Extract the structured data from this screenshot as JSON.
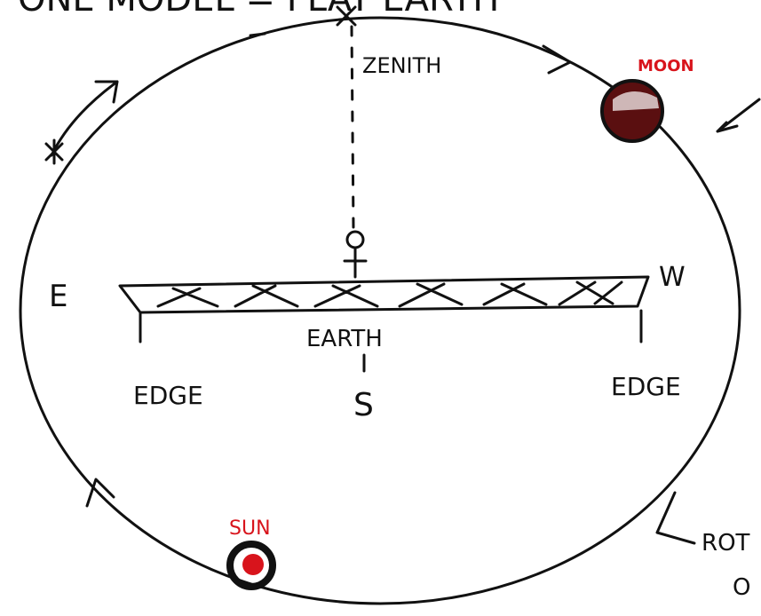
{
  "title": "ONE MODEL = FLAT EARTH",
  "labels": {
    "zenith": "ZENITH",
    "moon": "MOON",
    "east": "E",
    "west": "W",
    "earth": "EARTH",
    "edge_left": "EDGE",
    "edge_right": "EDGE",
    "south": "S",
    "sun": "SUN",
    "rotation_1": "ROT",
    "rotation_2": "O"
  }
}
